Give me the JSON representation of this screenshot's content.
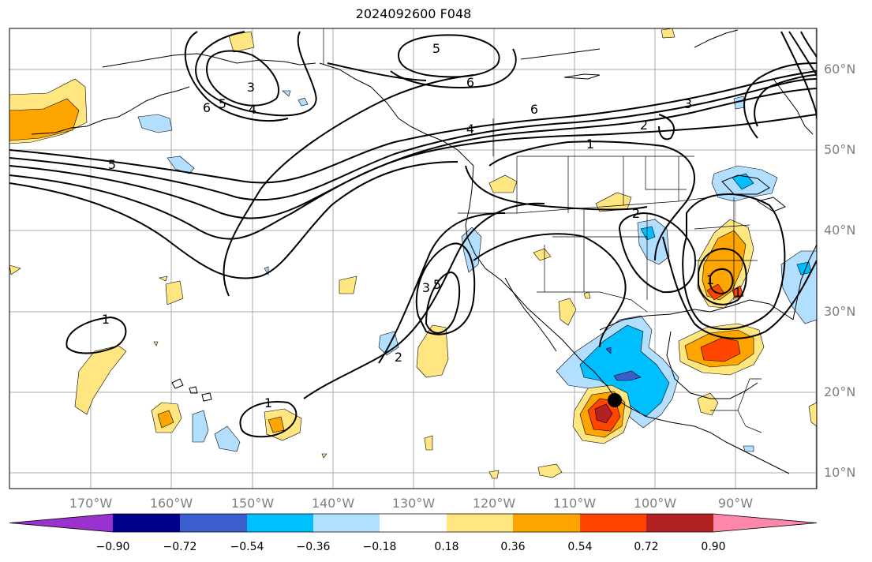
{
  "title": "2024092600 F048",
  "lon_ticks": [
    "170°W",
    "160°W",
    "150°W",
    "140°W",
    "130°W",
    "120°W",
    "110°W",
    "100°W",
    "90°W"
  ],
  "lat_ticks": [
    "60°N",
    "50°N",
    "40°N",
    "30°N",
    "20°N",
    "10°N"
  ],
  "colorbar": {
    "ticks": [
      "−0.90",
      "−0.72",
      "−0.54",
      "−0.36",
      "−0.18",
      "0.18",
      "0.36",
      "0.54",
      "0.72",
      "0.90"
    ],
    "colors": [
      "#9a32cd",
      "#00008b",
      "#3a5fcd",
      "#00bfff",
      "#b2dfff",
      "#ffffff",
      "#ffe680",
      "#ffa500",
      "#ff4500",
      "#b22222",
      "#ff88aa"
    ]
  },
  "contour_labels": [
    "5",
    "6",
    "3",
    "5",
    "6",
    "4",
    "5",
    "6",
    "4",
    "3",
    "2",
    "1",
    "5",
    "3",
    "4",
    "2",
    "2",
    "1",
    "1",
    "1",
    "1"
  ],
  "marker": "storm-center"
}
